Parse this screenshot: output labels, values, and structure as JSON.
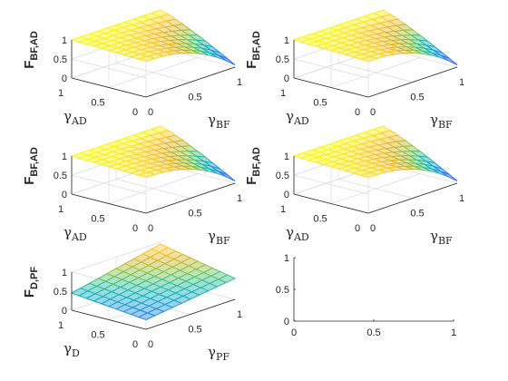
{
  "chart_data": [
    {
      "type": "surface",
      "title": "",
      "xlabel": {
        "symbol": "γ",
        "sub": "BF"
      },
      "ylabel": {
        "symbol": "γ",
        "sub": "AD"
      },
      "zlabel": {
        "symbol": "F",
        "sub": "BF,AD"
      },
      "xlim": [
        0,
        1
      ],
      "ylim": [
        0,
        1
      ],
      "zlim": [
        0,
        1
      ],
      "xticks": [
        "0",
        "0.5",
        "1"
      ],
      "yticks": [
        "0",
        "0.5",
        "1"
      ],
      "zticks": [
        "0",
        "0.5",
        "1"
      ],
      "grid": true,
      "surface": {
        "model": "bf",
        "z_at_0_0": 0.94,
        "z_at_1_1": 0.98,
        "z_at_1_0": 0.11,
        "z_at_0_1": 0.98
      }
    },
    {
      "type": "surface",
      "title": "",
      "xlabel": {
        "symbol": "γ",
        "sub": "BF"
      },
      "ylabel": {
        "symbol": "γ",
        "sub": "AD"
      },
      "zlabel": {
        "symbol": "F",
        "sub": "BF,AD"
      },
      "xlim": [
        0,
        1
      ],
      "ylim": [
        0,
        1
      ],
      "zlim": [
        0,
        1
      ],
      "xticks": [
        "0",
        "0.5",
        "1"
      ],
      "yticks": [
        "0",
        "0.5",
        "1"
      ],
      "zticks": [
        "0",
        "0.5",
        "1"
      ],
      "grid": true,
      "surface": {
        "model": "bf",
        "z_at_0_0": 0.94,
        "z_at_1_1": 0.98,
        "z_at_1_0": 0.11,
        "z_at_0_1": 0.98
      }
    },
    {
      "type": "surface",
      "title": "",
      "xlabel": {
        "symbol": "γ",
        "sub": "BF"
      },
      "ylabel": {
        "symbol": "γ",
        "sub": "AD"
      },
      "zlabel": {
        "symbol": "F",
        "sub": "BF,AD"
      },
      "xlim": [
        0,
        1
      ],
      "ylim": [
        0,
        1
      ],
      "zlim": [
        0,
        1
      ],
      "xticks": [
        "0",
        "0.5",
        "1"
      ],
      "yticks": [
        "0",
        "0.5",
        "1"
      ],
      "zticks": [
        "0",
        "0.5",
        "1"
      ],
      "grid": true,
      "surface": {
        "model": "bf",
        "z_at_0_0": 0.94,
        "z_at_1_1": 0.98,
        "z_at_1_0": 0.11,
        "z_at_0_1": 0.98
      }
    },
    {
      "type": "surface",
      "title": "",
      "xlabel": {
        "symbol": "γ",
        "sub": "BF"
      },
      "ylabel": {
        "symbol": "γ",
        "sub": "AD"
      },
      "zlabel": {
        "symbol": "F",
        "sub": "BF,AD"
      },
      "xlim": [
        0,
        1
      ],
      "ylim": [
        0,
        1
      ],
      "zlim": [
        0,
        1
      ],
      "xticks": [
        "0",
        "0.5",
        "1"
      ],
      "yticks": [
        "0",
        "0.5",
        "1"
      ],
      "zticks": [
        "0",
        "0.5",
        "1"
      ],
      "grid": true,
      "surface": {
        "model": "bf",
        "z_at_0_0": 0.94,
        "z_at_1_1": 0.98,
        "z_at_1_0": 0.11,
        "z_at_0_1": 0.98
      }
    },
    {
      "type": "surface",
      "title": "",
      "xlabel": {
        "symbol": "γ",
        "sub": "PF"
      },
      "ylabel": {
        "symbol": "γ",
        "sub": "D"
      },
      "zlabel": {
        "symbol": "F",
        "sub": "D,PF"
      },
      "xlim": [
        0,
        1
      ],
      "ylim": [
        0,
        1
      ],
      "zlim": [
        0,
        1
      ],
      "xticks": [
        "0",
        "0.5",
        "1"
      ],
      "yticks": [
        "0",
        "0.5",
        "1"
      ],
      "zticks": [
        "0",
        "0.5",
        "1"
      ],
      "grid": true,
      "surface": {
        "model": "dpf",
        "z_at_0_0": 0.25,
        "z_at_1_1": 0.95,
        "z_at_1_0": 0.55,
        "z_at_0_1": 0.45
      }
    },
    {
      "type": "line",
      "title": "",
      "xlabel": "",
      "ylabel": "",
      "xlim": [
        0,
        1
      ],
      "ylim": [
        0,
        1
      ],
      "xticks": [
        "0",
        "0.5",
        "1"
      ],
      "yticks": [
        "0",
        "0.5",
        "1"
      ],
      "grid": false,
      "series": []
    }
  ],
  "colormap": [
    "#3e26a8",
    "#4752e8",
    "#2c76fd",
    "#1e96d8",
    "#13b0c1",
    "#38c08d",
    "#8cc345",
    "#d2b52b",
    "#fbc42f",
    "#f9fb14"
  ]
}
